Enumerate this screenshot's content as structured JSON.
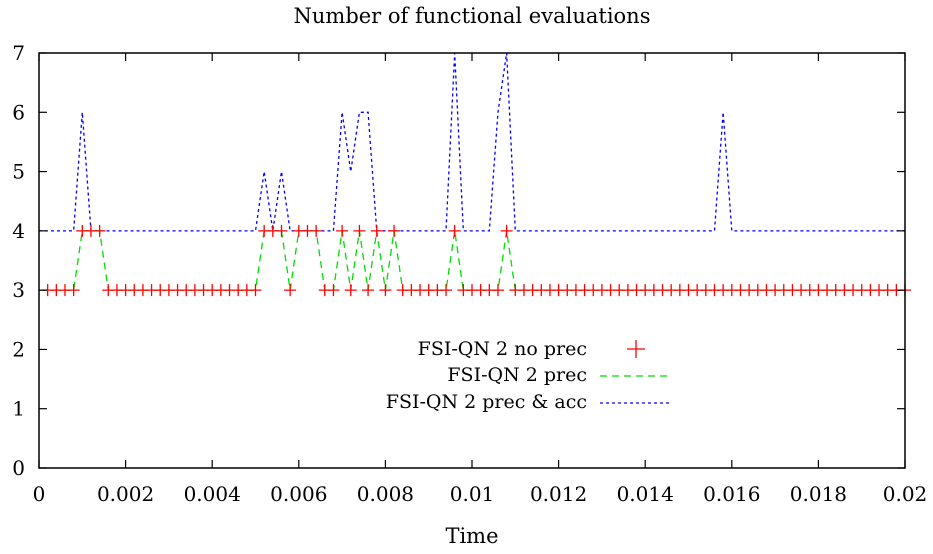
{
  "chart_data": {
    "type": "line",
    "title": "Number of functional evaluations",
    "xlabel": "Time",
    "ylabel": "",
    "xlim": [
      0,
      0.02
    ],
    "ylim": [
      0,
      7
    ],
    "xticks": [
      0,
      0.002,
      0.004,
      0.006,
      0.008,
      0.01,
      0.012,
      0.014,
      0.016,
      0.018,
      0.02
    ],
    "xtick_labels": [
      "0",
      "0.002",
      "0.004",
      "0.006",
      "0.008",
      "0.01",
      "0.012",
      "0.014",
      "0.016",
      "0.018",
      "0.02"
    ],
    "yticks": [
      0,
      1,
      2,
      3,
      4,
      5,
      6,
      7
    ],
    "ytick_labels": [
      "0",
      "1",
      "2",
      "3",
      "4",
      "5",
      "6",
      "7"
    ],
    "grid": false,
    "legend_position": "center",
    "series": [
      {
        "name": "FSI-QN 2 no prec",
        "style": "points",
        "marker": "plus",
        "color": "#ff0000",
        "x": [
          0.0002,
          0.0004,
          0.0006,
          0.0008,
          0.001,
          0.0012,
          0.0014,
          0.0016,
          0.0018,
          0.002,
          0.0022,
          0.0024,
          0.0026,
          0.0028,
          0.003,
          0.0032,
          0.0034,
          0.0036,
          0.0038,
          0.004,
          0.0042,
          0.0044,
          0.0046,
          0.0048,
          0.005,
          0.0052,
          0.0054,
          0.0056,
          0.0058,
          0.006,
          0.0062,
          0.0064,
          0.0066,
          0.0068,
          0.007,
          0.0072,
          0.0074,
          0.0076,
          0.0078,
          0.008,
          0.0082,
          0.0084,
          0.0086,
          0.0088,
          0.009,
          0.0092,
          0.0094,
          0.0096,
          0.0098,
          0.01,
          0.0102,
          0.0104,
          0.0106,
          0.0108,
          0.011,
          0.0112,
          0.0114,
          0.0116,
          0.0118,
          0.012,
          0.0122,
          0.0124,
          0.0126,
          0.0128,
          0.013,
          0.0132,
          0.0134,
          0.0136,
          0.0138,
          0.014,
          0.0142,
          0.0144,
          0.0146,
          0.0148,
          0.015,
          0.0152,
          0.0154,
          0.0156,
          0.0158,
          0.016,
          0.0162,
          0.0164,
          0.0166,
          0.0168,
          0.017,
          0.0172,
          0.0174,
          0.0176,
          0.0178,
          0.018,
          0.0182,
          0.0184,
          0.0186,
          0.0188,
          0.019,
          0.0192,
          0.0194,
          0.0196,
          0.0198,
          0.02
        ],
        "y": [
          3,
          3,
          3,
          3,
          4,
          4,
          4,
          3,
          3,
          3,
          3,
          3,
          3,
          3,
          3,
          3,
          3,
          3,
          3,
          3,
          3,
          3,
          3,
          3,
          3,
          4,
          4,
          4,
          3,
          4,
          4,
          4,
          3,
          3,
          4,
          3,
          4,
          3,
          4,
          3,
          4,
          3,
          3,
          3,
          3,
          3,
          3,
          4,
          3,
          3,
          3,
          3,
          3,
          4,
          3,
          3,
          3,
          3,
          3,
          3,
          3,
          3,
          3,
          3,
          3,
          3,
          3,
          3,
          3,
          3,
          3,
          3,
          3,
          3,
          3,
          3,
          3,
          3,
          3,
          3,
          3,
          3,
          3,
          3,
          3,
          3,
          3,
          3,
          3,
          3,
          3,
          3,
          3,
          3,
          3,
          3,
          3,
          3,
          3,
          3
        ]
      },
      {
        "name": "FSI-QN 2 prec",
        "style": "dashed",
        "color": "#00dd00",
        "x": [
          0,
          0.0002,
          0.0004,
          0.0006,
          0.0008,
          0.001,
          0.0012,
          0.0014,
          0.0016,
          0.0018,
          0.002,
          0.0022,
          0.0024,
          0.0026,
          0.0028,
          0.003,
          0.0032,
          0.0034,
          0.0036,
          0.0038,
          0.004,
          0.0042,
          0.0044,
          0.0046,
          0.0048,
          0.005,
          0.0052,
          0.0054,
          0.0056,
          0.0058,
          0.006,
          0.0062,
          0.0064,
          0.0066,
          0.0068,
          0.007,
          0.0072,
          0.0074,
          0.0076,
          0.0078,
          0.008,
          0.0082,
          0.0084,
          0.0086,
          0.0088,
          0.009,
          0.0092,
          0.0094,
          0.0096,
          0.0098,
          0.01,
          0.0102,
          0.0104,
          0.0106,
          0.0108,
          0.011,
          0.0112,
          0.0114,
          0.0116,
          0.0118,
          0.012,
          0.0122,
          0.0124,
          0.0126,
          0.0128,
          0.013,
          0.0132,
          0.0134,
          0.0136,
          0.0138,
          0.014,
          0.0142,
          0.0144,
          0.0146,
          0.0148,
          0.015,
          0.0152,
          0.0154,
          0.0156,
          0.0158,
          0.016,
          0.0162,
          0.0164,
          0.0166,
          0.0168,
          0.017,
          0.0172,
          0.0174,
          0.0176,
          0.0178,
          0.018,
          0.0182,
          0.0184,
          0.0186,
          0.0188,
          0.019,
          0.0192,
          0.0194,
          0.0196,
          0.0198,
          0.02
        ],
        "y": [
          3,
          3,
          3,
          3,
          3,
          4,
          4,
          4,
          3,
          3,
          3,
          3,
          3,
          3,
          3,
          3,
          3,
          3,
          3,
          3,
          3,
          3,
          3,
          3,
          3,
          3,
          4,
          4,
          4,
          3,
          4,
          4,
          4,
          3,
          3,
          4,
          3,
          4,
          3,
          4,
          3,
          4,
          3,
          3,
          3,
          3,
          3,
          3,
          4,
          3,
          3,
          3,
          3,
          3,
          4,
          3,
          3,
          3,
          3,
          3,
          3,
          3,
          3,
          3,
          3,
          3,
          3,
          3,
          3,
          3,
          3,
          3,
          3,
          3,
          3,
          3,
          3,
          3,
          3,
          3,
          3,
          3,
          3,
          3,
          3,
          3,
          3,
          3,
          3,
          3,
          3,
          3,
          3,
          3,
          3,
          3,
          3,
          3,
          3,
          3,
          3
        ]
      },
      {
        "name": "FSI-QN 2 prec & acc",
        "style": "dotted",
        "color": "#0000ff",
        "x": [
          0,
          0.0002,
          0.0004,
          0.0006,
          0.0008,
          0.001,
          0.0012,
          0.0014,
          0.0016,
          0.0018,
          0.002,
          0.0022,
          0.0024,
          0.0026,
          0.0028,
          0.003,
          0.0032,
          0.0034,
          0.0036,
          0.0038,
          0.004,
          0.0042,
          0.0044,
          0.0046,
          0.0048,
          0.005,
          0.0052,
          0.0054,
          0.0056,
          0.0058,
          0.006,
          0.0062,
          0.0064,
          0.0066,
          0.0068,
          0.007,
          0.0072,
          0.0074,
          0.0076,
          0.0078,
          0.008,
          0.0082,
          0.0084,
          0.0086,
          0.0088,
          0.009,
          0.0092,
          0.0094,
          0.0096,
          0.0098,
          0.01,
          0.0102,
          0.0104,
          0.0106,
          0.0108,
          0.011,
          0.0112,
          0.0114,
          0.0116,
          0.0118,
          0.012,
          0.0122,
          0.0124,
          0.0126,
          0.0128,
          0.013,
          0.0132,
          0.0134,
          0.0136,
          0.0138,
          0.014,
          0.0142,
          0.0144,
          0.0146,
          0.0148,
          0.015,
          0.0152,
          0.0154,
          0.0156,
          0.0158,
          0.016,
          0.0162,
          0.0164,
          0.0166,
          0.0168,
          0.017,
          0.0172,
          0.0174,
          0.0176,
          0.0178,
          0.018,
          0.0182,
          0.0184,
          0.0186,
          0.0188,
          0.019,
          0.0192,
          0.0194,
          0.0196,
          0.0198,
          0.02
        ],
        "y": [
          4,
          4,
          4,
          4,
          4,
          6,
          4,
          4,
          4,
          4,
          4,
          4,
          4,
          4,
          4,
          4,
          4,
          4,
          4,
          4,
          4,
          4,
          4,
          4,
          4,
          4,
          5,
          4,
          5,
          4,
          4,
          4,
          4,
          4,
          4,
          6,
          5,
          6,
          6,
          4,
          4,
          4,
          4,
          4,
          4,
          4,
          4,
          4,
          7,
          4,
          4,
          4,
          4,
          6,
          7,
          4,
          4,
          4,
          4,
          4,
          4,
          4,
          4,
          4,
          4,
          4,
          4,
          4,
          4,
          4,
          4,
          4,
          4,
          4,
          4,
          4,
          4,
          4,
          4,
          6,
          4,
          4,
          4,
          4,
          4,
          4,
          4,
          4,
          4,
          4,
          4,
          4,
          4,
          4,
          4,
          4,
          4,
          4,
          4,
          4,
          4
        ]
      }
    ]
  }
}
